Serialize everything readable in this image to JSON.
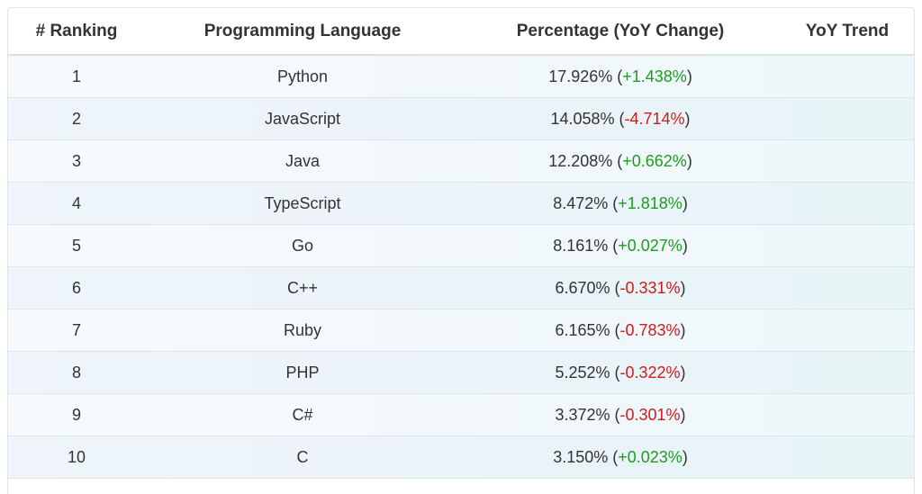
{
  "table": {
    "headers": {
      "rank": "# Ranking",
      "language": "Programming Language",
      "percentage": "Percentage (YoY Change)",
      "trend": "YoY Trend"
    },
    "rows": [
      {
        "rank": "1",
        "language": "Python",
        "percentage": "17.926%",
        "change": "+1.438%",
        "direction": "up"
      },
      {
        "rank": "2",
        "language": "JavaScript",
        "percentage": "14.058%",
        "change": "-4.714%",
        "direction": "down"
      },
      {
        "rank": "3",
        "language": "Java",
        "percentage": "12.208%",
        "change": "+0.662%",
        "direction": "up"
      },
      {
        "rank": "4",
        "language": "TypeScript",
        "percentage": "8.472%",
        "change": "+1.818%",
        "direction": "up"
      },
      {
        "rank": "5",
        "language": "Go",
        "percentage": "8.161%",
        "change": "+0.027%",
        "direction": "up"
      },
      {
        "rank": "6",
        "language": "C++",
        "percentage": "6.670%",
        "change": "-0.331%",
        "direction": "down"
      },
      {
        "rank": "7",
        "language": "Ruby",
        "percentage": "6.165%",
        "change": "-0.783%",
        "direction": "down"
      },
      {
        "rank": "8",
        "language": "PHP",
        "percentage": "5.252%",
        "change": "-0.322%",
        "direction": "down"
      },
      {
        "rank": "9",
        "language": "C#",
        "percentage": "3.372%",
        "change": "-0.301%",
        "direction": "down"
      },
      {
        "rank": "10",
        "language": "C",
        "percentage": "3.150%",
        "change": "+0.023%",
        "direction": "up"
      }
    ]
  },
  "colors": {
    "positive": "#1f9b1f",
    "negative": "#d21a1a"
  }
}
